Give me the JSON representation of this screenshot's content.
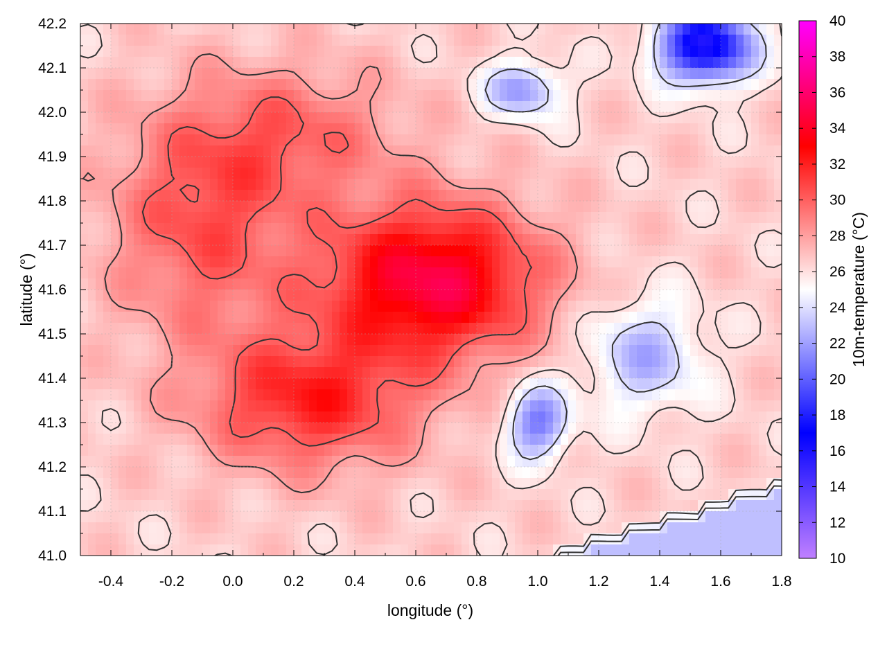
{
  "chart_data": {
    "type": "heatmap",
    "title": "",
    "xlabel": "longitude (°)",
    "ylabel": "latitude (°)",
    "colorbar_label": "10m-temperature (°C)",
    "xlim": [
      -0.5,
      1.8
    ],
    "ylim": [
      41.0,
      42.2
    ],
    "zlim": [
      10,
      40
    ],
    "x_ticks": [
      -0.4,
      -0.2,
      0.0,
      0.2,
      0.4,
      0.6,
      0.8,
      1.0,
      1.2,
      1.4,
      1.6,
      1.8
    ],
    "x_tick_labels": [
      "-0.4",
      "-0.2",
      "0.0",
      "0.2",
      "0.4",
      "0.6",
      "0.8",
      "1.0",
      "1.2",
      "1.4",
      "1.6",
      "1.8"
    ],
    "y_ticks": [
      41.0,
      41.1,
      41.2,
      41.3,
      41.4,
      41.5,
      41.6,
      41.7,
      41.8,
      41.9,
      42.0,
      42.1,
      42.2
    ],
    "y_tick_labels": [
      "41.0",
      "41.1",
      "41.2",
      "41.3",
      "41.4",
      "41.5",
      "41.6",
      "41.7",
      "41.8",
      "41.9",
      "42.0",
      "42.1",
      "42.2"
    ],
    "colorbar_ticks": [
      10,
      12,
      14,
      16,
      18,
      20,
      22,
      24,
      26,
      28,
      30,
      32,
      34,
      36,
      38,
      40
    ],
    "colorbar_tick_labels": [
      "10",
      "12",
      "14",
      "16",
      "18",
      "20",
      "22",
      "24",
      "26",
      "28",
      "30",
      "32",
      "34",
      "36",
      "38",
      "40"
    ],
    "colormap": [
      {
        "value": 10,
        "color": "#c080ff"
      },
      {
        "value": 17,
        "color": "#0000ff"
      },
      {
        "value": 25,
        "color": "#ffffff"
      },
      {
        "value": 33,
        "color": "#ff0000"
      },
      {
        "value": 40,
        "color": "#ff00ff"
      }
    ],
    "grid": true,
    "contour_levels": [
      24,
      26,
      28,
      30
    ],
    "field_centers": [
      {
        "lon": 0.65,
        "lat": 41.62,
        "temp": 8.5,
        "sx": 0.35,
        "sy": 0.17
      },
      {
        "lon": 0.25,
        "lat": 41.35,
        "temp": 5.5,
        "sx": 0.35,
        "sy": 0.15
      },
      {
        "lon": -0.1,
        "lat": 41.75,
        "temp": 4.0,
        "sx": 0.3,
        "sy": 0.25
      },
      {
        "lon": 0.2,
        "lat": 41.95,
        "temp": 3.0,
        "sx": 0.35,
        "sy": 0.15
      },
      {
        "lon": 1.55,
        "lat": 42.15,
        "temp": -11.0,
        "sx": 0.15,
        "sy": 0.08
      },
      {
        "lon": 1.0,
        "lat": 41.3,
        "temp": -6.0,
        "sx": 0.1,
        "sy": 0.08
      },
      {
        "lon": 0.95,
        "lat": 42.05,
        "temp": -5.0,
        "sx": 0.12,
        "sy": 0.06
      },
      {
        "lon": 1.35,
        "lat": 41.45,
        "temp": -4.0,
        "sx": 0.18,
        "sy": 0.12
      }
    ],
    "base_temperature": 26.5,
    "sea_temperature": 23.0
  }
}
